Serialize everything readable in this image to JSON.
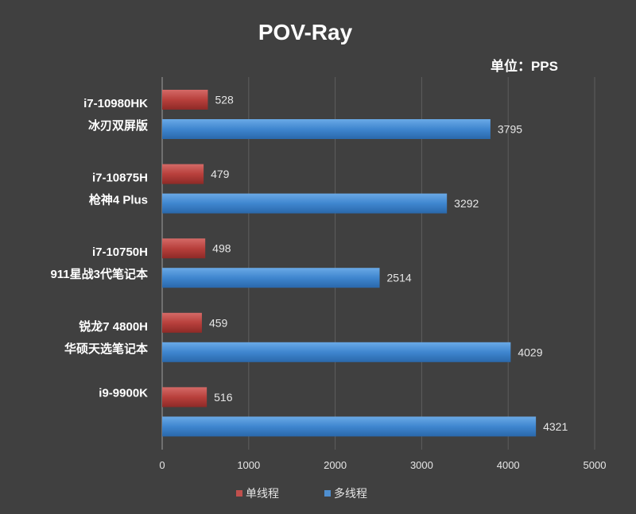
{
  "chart_data": {
    "type": "bar",
    "orientation": "horizontal",
    "title": "POV-Ray",
    "unit_label": "单位：PPS",
    "categories": [
      [
        "i7-10980HK",
        "冰刃双屏版"
      ],
      [
        "i7-10875H",
        "枪神4 Plus"
      ],
      [
        "i7-10750H",
        "911星战3代笔记本"
      ],
      [
        "锐龙7 4800H",
        "华硕天选笔记本"
      ],
      [
        "i9-9900K"
      ]
    ],
    "series": [
      {
        "name": "单线程",
        "values": [
          528,
          479,
          498,
          459,
          516
        ],
        "color": "#c0504d"
      },
      {
        "name": "多线程",
        "values": [
          3795,
          3292,
          2514,
          4029,
          4321
        ],
        "color": "#4f8fd0"
      }
    ],
    "xlim": [
      0,
      5000
    ],
    "ticks": [
      0,
      1000,
      2000,
      3000,
      4000,
      5000
    ],
    "grid": true,
    "legend_position": "bottom"
  }
}
